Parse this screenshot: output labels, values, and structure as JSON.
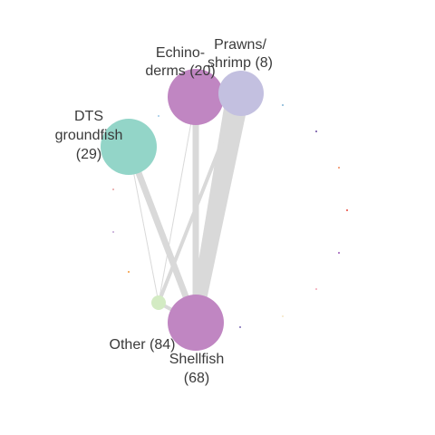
{
  "nodes": [
    {
      "id": "echinoderms",
      "label_lines": [
        "Echino-",
        "derms (20)"
      ],
      "color": "#c086c2"
    },
    {
      "id": "prawns",
      "label_lines": [
        "Prawns/",
        "shrimp (8)"
      ],
      "color": "#c3c0e0"
    },
    {
      "id": "dts",
      "label_lines": [
        "DTS",
        "groundfish",
        "(29)"
      ],
      "color": "#93d5c8"
    },
    {
      "id": "other",
      "label_lines": [
        "Other (84)"
      ],
      "color": "#d3ebc3"
    },
    {
      "id": "shellfish",
      "label_lines": [
        "Shellfish",
        "(68)"
      ],
      "color": "#c086c2"
    }
  ],
  "edges": [
    {
      "from": "prawns",
      "to": "shellfish",
      "weight": "heavy"
    },
    {
      "from": "echinoderms",
      "to": "shellfish",
      "weight": "medium"
    },
    {
      "from": "dts",
      "to": "shellfish",
      "weight": "medium"
    },
    {
      "from": "prawns",
      "to": "other",
      "weight": "light"
    },
    {
      "from": "echinoderms",
      "to": "other",
      "weight": "thin"
    },
    {
      "from": "dts",
      "to": "other",
      "weight": "thin"
    },
    {
      "from": "other",
      "to": "shellfish",
      "weight": "light"
    }
  ],
  "colors": {
    "edge": "#d9d9d9",
    "label": "#3a3a3a",
    "background": "#ffffff"
  }
}
